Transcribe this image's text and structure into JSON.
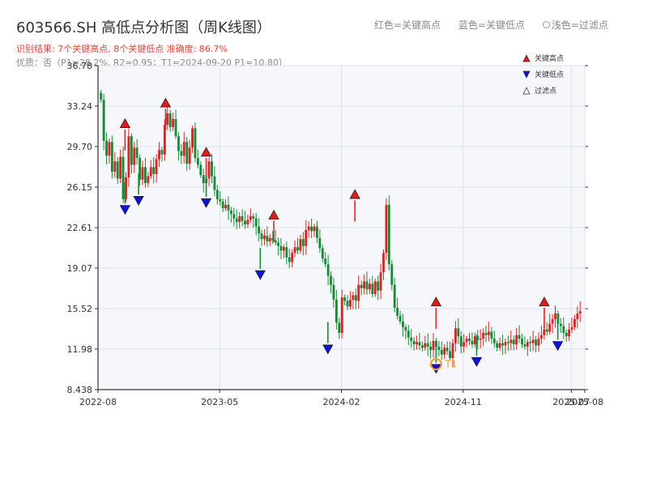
{
  "header": {
    "title": "603566.SH 高低点分析图（周K线图）",
    "subtitle": "识别结果: 7个关键高点, 8个关键低点  准确度: 86.7%",
    "quality": "优质：否（P1=28.2%, R2=0.95；T1=2024-09-20 P1=10.80）",
    "legend_red": "红色=关键高点",
    "legend_blue": "蓝色=关键低点",
    "legend_light": "浅色=过滤点"
  },
  "colors": {
    "up": "#d62728",
    "down": "#1a8a3a",
    "high_marker": "#e31a1c",
    "low_marker": "#1010d8",
    "t1_marker": "#f0a030",
    "plot_bg": "#f5f7fa"
  },
  "chart_data": {
    "type": "candlestick",
    "title": "603566.SH 高低点分析图（周K线图）",
    "y_ticks": [
      "36.78",
      "33.24",
      "29.70",
      "26.15",
      "22.61",
      "19.07",
      "15.52",
      "11.98",
      "8.438"
    ],
    "ylim": [
      8.438,
      36.78
    ],
    "x_ticks": [
      "2022-08",
      "2023-05",
      "2024-02",
      "2024-11",
      "2025-07",
      "2025-08"
    ],
    "x_range": [
      "2022-08",
      "2025-08"
    ],
    "grid": true,
    "legend": {
      "position": "top-right",
      "entries": [
        "关键高点",
        "关键低点",
        "过滤点"
      ]
    },
    "series_closes": [
      33.8,
      30.2,
      28.9,
      30.1,
      27.5,
      28.4,
      26.9,
      28.8,
      25.1,
      27.0,
      30.6,
      28.1,
      29.6,
      28.7,
      26.8,
      27.9,
      26.5,
      27.1,
      27.9,
      27.3,
      28.6,
      29.4,
      29.0,
      31.6,
      32.6,
      31.4,
      32.1,
      30.6,
      29.3,
      28.9,
      30.1,
      28.2,
      29.6,
      31.3,
      28.7,
      28.1,
      27.2,
      26.5,
      26.9,
      28.4,
      27.1,
      25.9,
      25.1,
      24.9,
      24.3,
      24.6,
      24.1,
      23.8,
      23.4,
      23.1,
      23.6,
      23.2,
      22.9,
      23.3,
      23.6,
      23.4,
      22.7,
      22.1,
      21.6,
      21.9,
      21.4,
      21.7,
      21.5,
      21.3,
      21.0,
      20.6,
      20.9,
      20.0,
      19.6,
      20.4,
      20.9,
      20.6,
      21.6,
      21.0,
      22.4,
      22.7,
      22.3,
      22.7,
      21.7,
      20.8,
      19.9,
      19.4,
      18.4,
      17.6,
      16.3,
      14.3,
      13.4,
      16.5,
      16.2,
      15.7,
      16.3,
      16.7,
      16.2,
      17.6,
      17.3,
      17.9,
      17.2,
      17.7,
      16.8,
      17.9,
      17.1,
      18.7,
      20.4,
      24.6,
      19.4,
      17.6,
      15.6,
      14.9,
      14.4,
      13.9,
      13.6,
      13.0,
      12.7,
      12.4,
      12.6,
      12.3,
      12.1,
      12.5,
      12.2,
      11.9,
      12.7,
      12.2,
      11.9,
      11.5,
      12.1,
      11.8,
      11.2,
      12.5,
      13.8,
      13.1,
      12.2,
      12.6,
      12.9,
      12.7,
      12.4,
      13.1,
      12.8,
      12.9,
      13.4,
      13.2,
      13.5,
      12.9,
      12.5,
      12.1,
      12.5,
      12.3,
      12.6,
      12.5,
      12.8,
      12.4,
      13.2,
      12.9,
      12.4,
      12.2,
      12.6,
      12.5,
      12.8,
      12.3,
      12.9,
      13.2,
      13.7,
      13.5,
      14.2,
      14.6,
      15.1,
      14.2,
      14.0,
      13.4,
      13.1,
      13.7,
      13.9,
      14.6,
      15.1,
      15.3
    ],
    "key_highs": [
      {
        "date": "2022-10",
        "value": 31.2
      },
      {
        "date": "2023-01",
        "value": 33.0
      },
      {
        "date": "2023-04",
        "value": 28.7
      },
      {
        "date": "2023-09",
        "value": 23.2
      },
      {
        "date": "2024-03",
        "value": 25.0
      },
      {
        "date": "2024-09",
        "value": 15.6
      },
      {
        "date": "2025-05",
        "value": 15.6
      }
    ],
    "key_lows": [
      {
        "date": "2022-10",
        "value": 24.7
      },
      {
        "date": "2022-11",
        "value": 25.5
      },
      {
        "date": "2023-04",
        "value": 25.3
      },
      {
        "date": "2023-08",
        "value": 19.0
      },
      {
        "date": "2024-01",
        "value": 12.5
      },
      {
        "date": "2024-09",
        "value": 10.8
      },
      {
        "date": "2024-12",
        "value": 11.4
      },
      {
        "date": "2025-06",
        "value": 12.8
      }
    ],
    "annotations": [
      "T1"
    ]
  }
}
